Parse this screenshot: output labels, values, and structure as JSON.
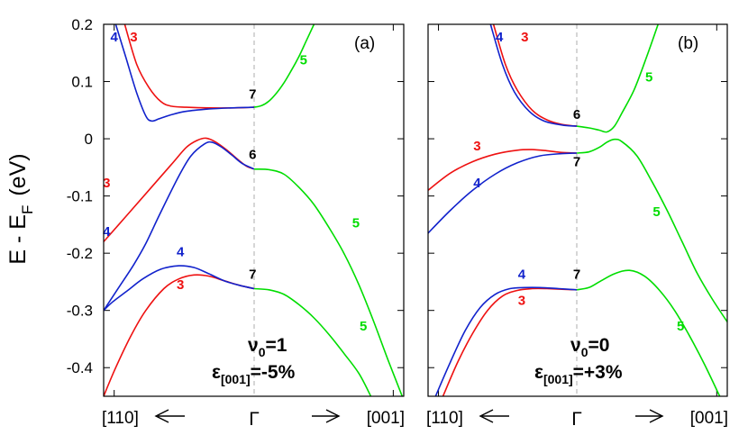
{
  "figure": {
    "ylabel_main": "E - E",
    "ylabel_sub": "F",
    "ylabel_unit": "(eV)",
    "colors": {
      "band3": "#ee1111",
      "band4": "#1122cc",
      "band5": "#00dd00",
      "degenerate": "#000000",
      "gamma_line": "#bbbbbb"
    }
  },
  "chart_data": [
    {
      "type": "line",
      "panel": "(a)",
      "xlabel_left": "[110]",
      "xlabel_center": "Γ",
      "xlabel_right": "[001]",
      "ylim": [
        -0.45,
        0.2
      ],
      "yticks": [
        "0.2",
        "0.1",
        "0",
        "-0.1",
        "-0.2",
        "-0.3",
        "-0.4"
      ],
      "ytick_values": [
        0.2,
        0.1,
        0,
        -0.1,
        -0.2,
        -0.3,
        -0.4
      ],
      "annotation_nu_symbol": "ν",
      "annotation_nu_sub": "0",
      "annotation_nu_value": "=1",
      "annotation_eps_symbol": "ε",
      "annotation_eps_sub": "[001]",
      "annotation_eps_value": "=-5%",
      "x_note": "x in units of k relative to Γ: -1 = left axis edge ([110] side), 0 = Γ, +1 = right axis edge ([001] side)",
      "series": [
        {
          "name": "3",
          "color": "#ee1111",
          "points": [
            [
              -0.86,
              0.2
            ],
            [
              -0.78,
              0.13
            ],
            [
              -0.7,
              0.09
            ],
            [
              -0.62,
              0.065
            ],
            [
              -0.55,
              0.057
            ],
            [
              -0.45,
              0.055
            ],
            [
              -0.3,
              0.054
            ],
            [
              -0.15,
              0.054
            ],
            [
              0,
              0.055
            ]
          ]
        },
        {
          "name": "4",
          "color": "#1122cc",
          "points": [
            [
              -0.92,
              0.2
            ],
            [
              -0.85,
              0.14
            ],
            [
              -0.78,
              0.08
            ],
            [
              -0.72,
              0.04
            ],
            [
              -0.68,
              0.031
            ],
            [
              -0.63,
              0.035
            ],
            [
              -0.55,
              0.042
            ],
            [
              -0.45,
              0.048
            ],
            [
              -0.3,
              0.052
            ],
            [
              -0.15,
              0.054
            ],
            [
              0,
              0.055
            ]
          ]
        },
        {
          "name": "5",
          "color": "#00dd00",
          "points": [
            [
              0,
              0.055
            ],
            [
              0.05,
              0.058
            ],
            [
              0.1,
              0.066
            ],
            [
              0.15,
              0.08
            ],
            [
              0.2,
              0.098
            ],
            [
              0.25,
              0.12
            ],
            [
              0.3,
              0.144
            ],
            [
              0.35,
              0.172
            ],
            [
              0.4,
              0.2
            ]
          ]
        },
        {
          "name": "3",
          "color": "#ee1111",
          "points": [
            [
              -1,
              -0.18
            ],
            [
              -0.85,
              -0.135
            ],
            [
              -0.7,
              -0.09
            ],
            [
              -0.55,
              -0.045
            ],
            [
              -0.45,
              -0.015
            ],
            [
              -0.38,
              -0.003
            ],
            [
              -0.32,
              0.001
            ],
            [
              -0.26,
              -0.005
            ],
            [
              -0.18,
              -0.02
            ],
            [
              -0.1,
              -0.038
            ],
            [
              -0.05,
              -0.048
            ],
            [
              0,
              -0.053
            ]
          ]
        },
        {
          "name": "4",
          "color": "#1122cc",
          "points": [
            [
              -1,
              -0.3
            ],
            [
              -0.9,
              -0.26
            ],
            [
              -0.8,
              -0.22
            ],
            [
              -0.72,
              -0.183
            ],
            [
              -0.62,
              -0.128
            ],
            [
              -0.5,
              -0.065
            ],
            [
              -0.42,
              -0.03
            ],
            [
              -0.33,
              -0.009
            ],
            [
              -0.28,
              -0.006
            ],
            [
              -0.22,
              -0.014
            ],
            [
              -0.15,
              -0.028
            ],
            [
              -0.08,
              -0.043
            ],
            [
              0,
              -0.053
            ]
          ]
        },
        {
          "name": "5",
          "color": "#00dd00",
          "points": [
            [
              0,
              -0.053
            ],
            [
              0.1,
              -0.054
            ],
            [
              0.2,
              -0.062
            ],
            [
              0.3,
              -0.085
            ],
            [
              0.4,
              -0.115
            ],
            [
              0.5,
              -0.155
            ],
            [
              0.6,
              -0.2
            ],
            [
              0.7,
              -0.255
            ],
            [
              0.8,
              -0.32
            ],
            [
              0.9,
              -0.39
            ],
            [
              0.99,
              -0.45
            ]
          ]
        },
        {
          "name": "3",
          "color": "#ee1111",
          "points": [
            [
              -1,
              -0.45
            ],
            [
              -0.92,
              -0.4
            ],
            [
              -0.82,
              -0.345
            ],
            [
              -0.72,
              -0.3
            ],
            [
              -0.6,
              -0.262
            ],
            [
              -0.5,
              -0.245
            ],
            [
              -0.4,
              -0.238
            ],
            [
              -0.3,
              -0.24
            ],
            [
              -0.2,
              -0.248
            ],
            [
              -0.1,
              -0.256
            ],
            [
              0,
              -0.262
            ]
          ]
        },
        {
          "name": "4",
          "color": "#1122cc",
          "points": [
            [
              -1,
              -0.3
            ],
            [
              -0.94,
              -0.285
            ],
            [
              -0.84,
              -0.265
            ],
            [
              -0.74,
              -0.245
            ],
            [
              -0.62,
              -0.228
            ],
            [
              -0.5,
              -0.222
            ],
            [
              -0.4,
              -0.225
            ],
            [
              -0.3,
              -0.236
            ],
            [
              -0.2,
              -0.248
            ],
            [
              -0.1,
              -0.256
            ],
            [
              0,
              -0.262
            ]
          ]
        },
        {
          "name": "5",
          "color": "#00dd00",
          "points": [
            [
              0,
              -0.262
            ],
            [
              0.1,
              -0.264
            ],
            [
              0.2,
              -0.272
            ],
            [
              0.3,
              -0.29
            ],
            [
              0.4,
              -0.313
            ],
            [
              0.5,
              -0.342
            ],
            [
              0.6,
              -0.375
            ],
            [
              0.7,
              -0.41
            ],
            [
              0.78,
              -0.45
            ]
          ]
        }
      ],
      "labels": [
        {
          "text": "4",
          "color": "#1122cc",
          "at": [
            -0.93,
            0.17
          ]
        },
        {
          "text": "3",
          "color": "#ee1111",
          "at": [
            -0.8,
            0.17
          ]
        },
        {
          "text": "5",
          "color": "#00dd00",
          "at": [
            0.33,
            0.13
          ]
        },
        {
          "text": "7",
          "color": "#000000",
          "at": [
            -0.01,
            0.07
          ]
        },
        {
          "text": "6",
          "color": "#000000",
          "at": [
            -0.01,
            -0.035
          ]
        },
        {
          "text": "3",
          "color": "#ee1111",
          "at": [
            -0.98,
            -0.085
          ]
        },
        {
          "text": "4",
          "color": "#1122cc",
          "at": [
            -0.98,
            -0.17
          ]
        },
        {
          "text": "5",
          "color": "#00dd00",
          "at": [
            0.68,
            -0.155
          ]
        },
        {
          "text": "4",
          "color": "#1122cc",
          "at": [
            -0.49,
            -0.205
          ]
        },
        {
          "text": "3",
          "color": "#ee1111",
          "at": [
            -0.49,
            -0.263
          ]
        },
        {
          "text": "7",
          "color": "#000000",
          "at": [
            -0.01,
            -0.245
          ]
        },
        {
          "text": "5",
          "color": "#00dd00",
          "at": [
            0.73,
            -0.335
          ]
        }
      ]
    },
    {
      "type": "line",
      "panel": "(b)",
      "xlabel_left": "[110]",
      "xlabel_center": "Γ",
      "xlabel_right": "[001]",
      "ylim": [
        -0.45,
        0.2
      ],
      "annotation_nu_symbol": "ν",
      "annotation_nu_sub": "0",
      "annotation_nu_value": "=0",
      "annotation_eps_symbol": "ε",
      "annotation_eps_sub": "[001]",
      "annotation_eps_value": "=+3%",
      "series": [
        {
          "name": "3",
          "color": "#ee1111",
          "points": [
            [
              -0.56,
              0.2
            ],
            [
              -0.48,
              0.13
            ],
            [
              -0.4,
              0.085
            ],
            [
              -0.3,
              0.05
            ],
            [
              -0.2,
              0.033
            ],
            [
              -0.1,
              0.025
            ],
            [
              0,
              0.022
            ]
          ]
        },
        {
          "name": "4",
          "color": "#1122cc",
          "points": [
            [
              -0.58,
              0.2
            ],
            [
              -0.5,
              0.13
            ],
            [
              -0.42,
              0.082
            ],
            [
              -0.32,
              0.048
            ],
            [
              -0.22,
              0.031
            ],
            [
              -0.1,
              0.024
            ],
            [
              0,
              0.022
            ]
          ]
        },
        {
          "name": "5",
          "color": "#00dd00",
          "points": [
            [
              0,
              0.022
            ],
            [
              0.08,
              0.019
            ],
            [
              0.15,
              0.015
            ],
            [
              0.2,
              0.012
            ],
            [
              0.25,
              0.022
            ],
            [
              0.3,
              0.045
            ],
            [
              0.38,
              0.085
            ],
            [
              0.46,
              0.14
            ],
            [
              0.54,
              0.2
            ]
          ]
        },
        {
          "name": "3",
          "color": "#ee1111",
          "points": [
            [
              -1,
              -0.09
            ],
            [
              -0.85,
              -0.06
            ],
            [
              -0.7,
              -0.04
            ],
            [
              -0.55,
              -0.027
            ],
            [
              -0.4,
              -0.02
            ],
            [
              -0.3,
              -0.019
            ],
            [
              -0.2,
              -0.021
            ],
            [
              -0.1,
              -0.024
            ],
            [
              0,
              -0.025
            ]
          ]
        },
        {
          "name": "4",
          "color": "#1122cc",
          "points": [
            [
              -1,
              -0.165
            ],
            [
              -0.85,
              -0.125
            ],
            [
              -0.7,
              -0.09
            ],
            [
              -0.55,
              -0.062
            ],
            [
              -0.4,
              -0.042
            ],
            [
              -0.25,
              -0.03
            ],
            [
              -0.1,
              -0.026
            ],
            [
              0,
              -0.025
            ]
          ]
        },
        {
          "name": "5",
          "color": "#00dd00",
          "points": [
            [
              0,
              -0.025
            ],
            [
              0.08,
              -0.023
            ],
            [
              0.15,
              -0.015
            ],
            [
              0.2,
              -0.006
            ],
            [
              0.25,
              -0.001
            ],
            [
              0.3,
              -0.005
            ],
            [
              0.4,
              -0.03
            ],
            [
              0.5,
              -0.075
            ],
            [
              0.6,
              -0.125
            ],
            [
              0.7,
              -0.18
            ],
            [
              0.8,
              -0.235
            ],
            [
              0.9,
              -0.28
            ],
            [
              1,
              -0.32
            ]
          ]
        },
        {
          "name": "3",
          "color": "#ee1111",
          "points": [
            [
              -0.9,
              -0.45
            ],
            [
              -0.8,
              -0.39
            ],
            [
              -0.7,
              -0.34
            ],
            [
              -0.6,
              -0.3
            ],
            [
              -0.5,
              -0.275
            ],
            [
              -0.4,
              -0.265
            ],
            [
              -0.3,
              -0.262
            ],
            [
              -0.2,
              -0.262
            ],
            [
              -0.1,
              -0.263
            ],
            [
              0,
              -0.264
            ]
          ]
        },
        {
          "name": "4",
          "color": "#1122cc",
          "points": [
            [
              -0.95,
              -0.45
            ],
            [
              -0.85,
              -0.39
            ],
            [
              -0.75,
              -0.335
            ],
            [
              -0.65,
              -0.295
            ],
            [
              -0.55,
              -0.272
            ],
            [
              -0.45,
              -0.262
            ],
            [
              -0.35,
              -0.26
            ],
            [
              -0.25,
              -0.26
            ],
            [
              -0.12,
              -0.262
            ],
            [
              0,
              -0.264
            ]
          ]
        },
        {
          "name": "5",
          "color": "#00dd00",
          "points": [
            [
              0,
              -0.264
            ],
            [
              0.08,
              -0.26
            ],
            [
              0.15,
              -0.25
            ],
            [
              0.25,
              -0.236
            ],
            [
              0.35,
              -0.23
            ],
            [
              0.45,
              -0.24
            ],
            [
              0.55,
              -0.265
            ],
            [
              0.65,
              -0.3
            ],
            [
              0.75,
              -0.345
            ],
            [
              0.85,
              -0.395
            ],
            [
              0.95,
              -0.45
            ]
          ]
        }
      ],
      "labels": [
        {
          "text": "4",
          "color": "#1122cc",
          "at": [
            -0.52,
            0.17
          ]
        },
        {
          "text": "3",
          "color": "#ee1111",
          "at": [
            -0.35,
            0.17
          ]
        },
        {
          "text": "5",
          "color": "#00dd00",
          "at": [
            0.48,
            0.1
          ]
        },
        {
          "text": "6",
          "color": "#000000",
          "at": [
            0.0,
            0.035
          ]
        },
        {
          "text": "3",
          "color": "#ee1111",
          "at": [
            -0.67,
            -0.02
          ]
        },
        {
          "text": "7",
          "color": "#000000",
          "at": [
            0.0,
            -0.048
          ]
        },
        {
          "text": "4",
          "color": "#1122cc",
          "at": [
            -0.67,
            -0.085
          ]
        },
        {
          "text": "5",
          "color": "#00dd00",
          "at": [
            0.53,
            -0.135
          ]
        },
        {
          "text": "4",
          "color": "#1122cc",
          "at": [
            -0.37,
            -0.245
          ]
        },
        {
          "text": "7",
          "color": "#000000",
          "at": [
            0.0,
            -0.245
          ]
        },
        {
          "text": "3",
          "color": "#ee1111",
          "at": [
            -0.37,
            -0.29
          ]
        },
        {
          "text": "5",
          "color": "#00dd00",
          "at": [
            0.69,
            -0.335
          ]
        }
      ]
    }
  ]
}
